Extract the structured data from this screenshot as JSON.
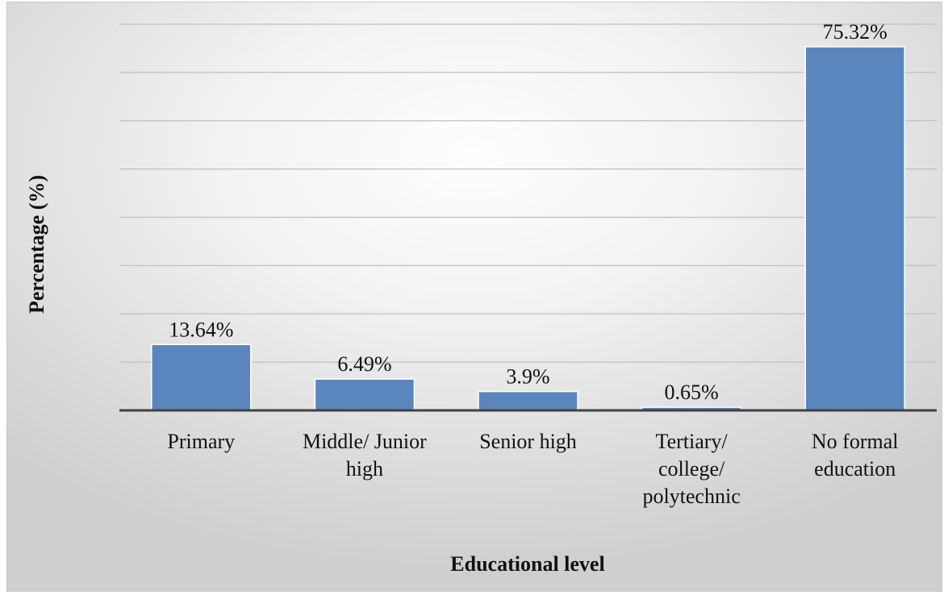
{
  "chart_data": {
    "type": "bar",
    "categories": [
      [
        "Primary"
      ],
      [
        "Middle/ Junior",
        "high"
      ],
      [
        "Senior high"
      ],
      [
        "Tertiary/",
        "college/",
        "polytechnic"
      ],
      [
        "No formal",
        "education"
      ]
    ],
    "values": [
      13.64,
      6.49,
      3.9,
      0.65,
      75.32
    ],
    "data_labels": [
      "13.64%",
      "6.49%",
      "3.9%",
      "0.65%",
      "75.32%"
    ],
    "xlabel": "Educational level",
    "ylabel": "Percentage (%)",
    "ylim": [
      0,
      80
    ],
    "grid": true,
    "y_ticks_visible": false,
    "bar_color": "#5b86bd",
    "axis_color": "#404040",
    "grid_color": "#bfbfbf"
  }
}
